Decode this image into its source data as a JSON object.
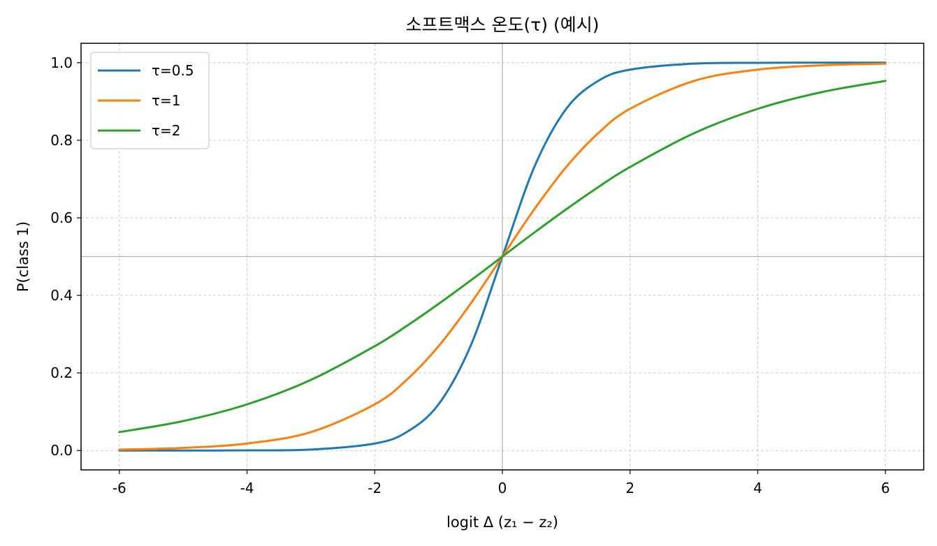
{
  "chart_data": {
    "type": "line",
    "title": "소프트맥스 온도(τ) (예시)",
    "xlabel": "logit Δ (z₁ − z₂)",
    "ylabel": "P(class 1)",
    "xlim": [
      -6.6,
      6.6
    ],
    "ylim": [
      -0.05,
      1.05
    ],
    "xticks": [
      -6,
      -4,
      -2,
      0,
      2,
      4,
      6
    ],
    "yticks": [
      0.0,
      0.2,
      0.4,
      0.6,
      0.8,
      1.0
    ],
    "xtick_labels": [
      "-6",
      "-4",
      "-2",
      "0",
      "2",
      "4",
      "6"
    ],
    "ytick_labels": [
      "0.0",
      "0.2",
      "0.4",
      "0.6",
      "0.8",
      "1.0"
    ],
    "grid": true,
    "reference_lines": {
      "vertical_x": 0,
      "horizontal_y": 0.5
    },
    "legend_position": "top-left",
    "x": [
      -6,
      -5,
      -4,
      -3,
      -2,
      -1.5,
      -1,
      -0.5,
      0,
      0.5,
      1,
      1.5,
      2,
      3,
      4,
      5,
      6
    ],
    "series": [
      {
        "name": "τ=0.5",
        "color": "#1f77b4",
        "values": [
          6e-06,
          4.5e-05,
          0.000335,
          0.00247,
          0.018,
          0.0474,
          0.119,
          0.269,
          0.5,
          0.731,
          0.881,
          0.953,
          0.982,
          0.9975,
          0.9997,
          0.99995,
          0.999994
        ]
      },
      {
        "name": "τ=1",
        "color": "#ff7f0e",
        "values": [
          0.00247,
          0.0067,
          0.018,
          0.0474,
          0.119,
          0.182,
          0.269,
          0.378,
          0.5,
          0.622,
          0.731,
          0.818,
          0.881,
          0.953,
          0.982,
          0.9933,
          0.9975
        ]
      },
      {
        "name": "τ=2",
        "color": "#2ca02c",
        "values": [
          0.0474,
          0.0759,
          0.119,
          0.182,
          0.269,
          0.321,
          0.378,
          0.438,
          0.5,
          0.562,
          0.622,
          0.679,
          0.731,
          0.818,
          0.881,
          0.924,
          0.953
        ]
      }
    ]
  }
}
